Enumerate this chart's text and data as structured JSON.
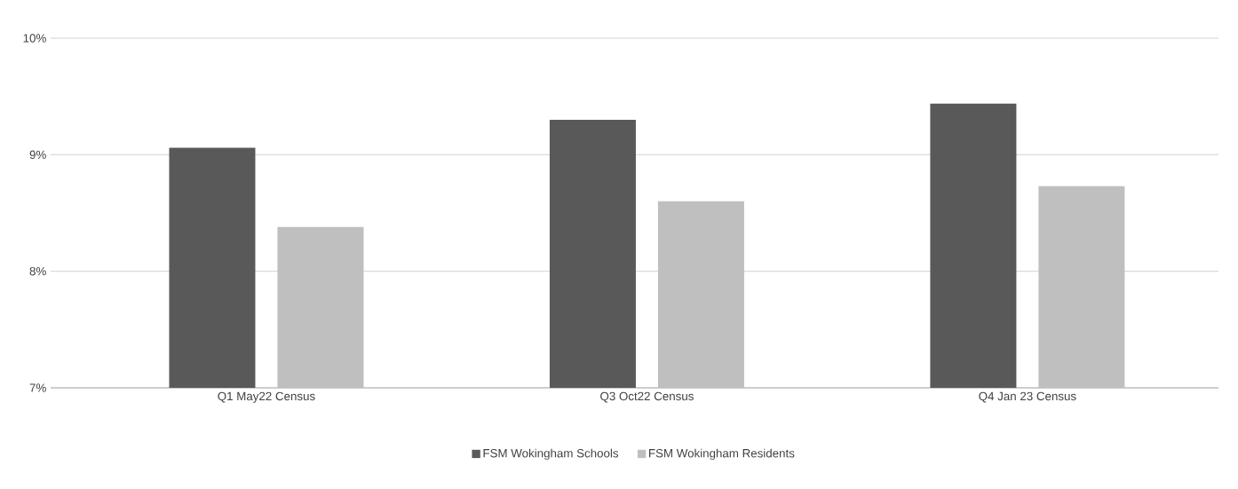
{
  "chart_data": {
    "type": "bar",
    "categories": [
      "Q1 May22 Census",
      "Q3 Oct22 Census",
      "Q4 Jan 23 Census"
    ],
    "series": [
      {
        "name": "FSM Wokingham Schools",
        "color": "#595959",
        "values": [
          9.06,
          9.3,
          9.44
        ]
      },
      {
        "name": "FSM Wokingham Residents",
        "color": "#bfbfbf",
        "values": [
          8.38,
          8.6,
          8.73
        ]
      }
    ],
    "ylim": [
      7,
      10
    ],
    "yticks": [
      {
        "value": 7,
        "label": "7%"
      },
      {
        "value": 8,
        "label": "8%"
      },
      {
        "value": 9,
        "label": "9%"
      },
      {
        "value": 10,
        "label": "10%"
      }
    ],
    "grid": "y",
    "legend": "bottom"
  }
}
